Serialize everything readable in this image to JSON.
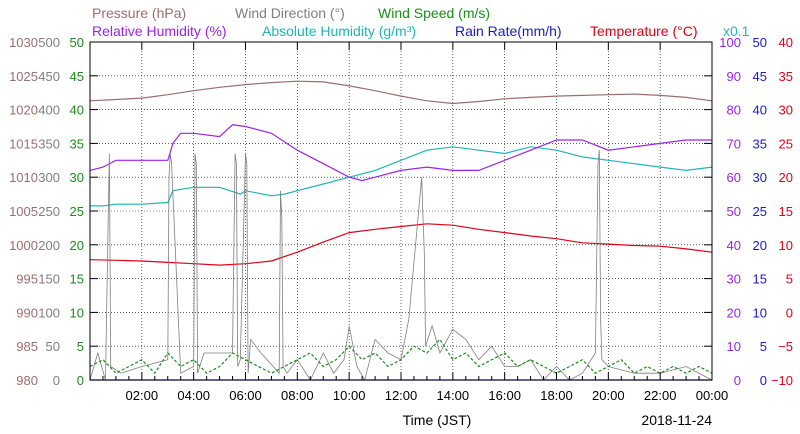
{
  "chart_data": {
    "type": "line",
    "date": "2018-11-24",
    "xlabel": "Time (JST)",
    "legend": {
      "pressure": "Pressure (hPa)",
      "wind_direction": "Wind Direction (°)",
      "wind_speed": "Wind Speed (m/s)",
      "relative_humidity": "Relative Humidity (%)",
      "absolute_humidity": "Absolute Humidity (g/m³)",
      "rain_rate": "Rain Rate(mm/h)",
      "temperature": "Temperature (°C)",
      "rain_multiplier": "x0.1"
    },
    "x_range_hours": [
      0,
      24
    ],
    "x_ticks": [
      "02:00",
      "04:00",
      "06:00",
      "08:00",
      "10:00",
      "12:00",
      "14:00",
      "16:00",
      "18:00",
      "20:00",
      "22:00",
      "00:00"
    ],
    "grid": true,
    "axes": {
      "pressure": {
        "side": "left",
        "color": "#9b6e6e",
        "range": [
          980,
          1030
        ],
        "ticks": [
          "1030",
          "1025",
          "1020",
          "1015",
          "1010",
          "1005",
          "1000",
          "995",
          "990",
          "985",
          "980"
        ]
      },
      "wind_direction": {
        "side": "left",
        "color": "#7f7f7f",
        "range": [
          0,
          500
        ],
        "ticks": [
          "500",
          "450",
          "400",
          "350",
          "300",
          "250",
          "200",
          "150",
          "100",
          "50",
          "0"
        ]
      },
      "wind_speed": {
        "side": "left",
        "color": "#1c8c1c",
        "range": [
          0,
          50
        ],
        "ticks": [
          "50",
          "45",
          "40",
          "35",
          "30",
          "25",
          "20",
          "15",
          "10",
          "5",
          "0"
        ]
      },
      "relative_humidity": {
        "side": "right",
        "color": "#9a24e6",
        "range": [
          0,
          100
        ],
        "ticks": [
          "100",
          "90",
          "80",
          "70",
          "60",
          "50",
          "40",
          "30",
          "20",
          "10",
          "0"
        ]
      },
      "rain_rate": {
        "side": "right",
        "color": "#1a1acc",
        "range": [
          0,
          50
        ],
        "ticks": [
          "50",
          "45",
          "40",
          "35",
          "30",
          "25",
          "20",
          "15",
          "10",
          "5",
          "0"
        ]
      },
      "temperature": {
        "side": "right",
        "color": "#e0001a",
        "range": [
          -10,
          40
        ],
        "ticks": [
          "40",
          "35",
          "30",
          "25",
          "20",
          "15",
          "10",
          "5",
          "0",
          "−5",
          "−10"
        ]
      }
    },
    "series": [
      {
        "name": "Pressure (hPa)",
        "axis": "pressure",
        "color": "#9b6e6e",
        "x": [
          0,
          1,
          2,
          3,
          4,
          5,
          6,
          7,
          8,
          9,
          10,
          11,
          12,
          13,
          14,
          15,
          16,
          17,
          18,
          19,
          20,
          21,
          22,
          23,
          24
        ],
        "y": [
          1021.3,
          1021.5,
          1021.7,
          1022.2,
          1022.8,
          1023.3,
          1023.7,
          1024.0,
          1024.2,
          1024.1,
          1023.5,
          1022.8,
          1022.0,
          1021.3,
          1020.9,
          1021.2,
          1021.6,
          1021.8,
          1022.0,
          1022.1,
          1022.2,
          1022.3,
          1022.1,
          1021.8,
          1021.3
        ]
      },
      {
        "name": "Absolute Humidity (g/m³)",
        "axis": "relative_humidity",
        "color": "#1fb5b5",
        "x": [
          0,
          0.5,
          1,
          2,
          3,
          3.2,
          4,
          5,
          5.8,
          6,
          7,
          7.5,
          8,
          9,
          10,
          11,
          12,
          13,
          14,
          15,
          16,
          17,
          18,
          19,
          20,
          21,
          22,
          23,
          24
        ],
        "y": [
          51.5,
          51.5,
          52,
          52,
          52.5,
          56,
          57,
          57,
          55,
          56,
          54.5,
          55,
          56,
          58,
          60,
          62,
          65,
          68,
          69,
          68,
          67,
          69,
          68,
          66,
          65,
          64,
          63,
          62,
          63
        ]
      },
      {
        "name": "Relative Humidity (%)",
        "axis": "relative_humidity",
        "color": "#9a24e6",
        "x": [
          0,
          0.5,
          1,
          2,
          3,
          3.2,
          3.5,
          4,
          5,
          5.5,
          6,
          7,
          8,
          9,
          10,
          10.5,
          11,
          12,
          13,
          14,
          15,
          16,
          17,
          18,
          19,
          20,
          21,
          22,
          23,
          24
        ],
        "y": [
          62,
          63,
          65,
          65,
          65,
          70,
          73,
          73,
          72,
          75.5,
          75,
          73,
          68,
          64,
          60,
          59,
          60,
          62,
          63,
          62,
          62,
          65,
          68,
          71,
          71,
          68,
          69,
          70,
          71,
          71
        ]
      },
      {
        "name": "Temperature (°C)",
        "axis": "temperature",
        "color": "#e0001a",
        "x": [
          0,
          1,
          2,
          3,
          4,
          5,
          6,
          7,
          8,
          9,
          10,
          11,
          12,
          13,
          14,
          15,
          16,
          17,
          18,
          19,
          20,
          21,
          22,
          23,
          24
        ],
        "y": [
          7.8,
          7.7,
          7.6,
          7.4,
          7.2,
          7.0,
          7.2,
          7.6,
          8.9,
          10.4,
          11.8,
          12.3,
          12.7,
          13.1,
          12.9,
          12.3,
          11.8,
          11.3,
          10.9,
          10.3,
          10.1,
          9.9,
          9.8,
          9.4,
          8.9
        ]
      },
      {
        "name": "Wind Direction (°)",
        "axis": "wind_direction",
        "color": "#7f7f7f",
        "x": [
          0,
          0.3,
          0.6,
          0.7,
          0.75,
          0.8,
          1.2,
          2,
          3,
          3.05,
          3.1,
          3.15,
          3.5,
          4.0,
          4.05,
          4.1,
          4.15,
          4.4,
          5.5,
          5.6,
          5.65,
          5.7,
          5.8,
          6,
          6.05,
          6.1,
          6.2,
          6.6,
          7.3,
          7.35,
          7.4,
          7.45,
          7.6,
          8,
          8.5,
          9,
          9.4,
          9.8,
          10,
          10.3,
          10.6,
          11,
          11.5,
          12,
          12.3,
          12.8,
          12.85,
          12.9,
          12.95,
          13.2,
          13.5,
          14,
          14.5,
          15,
          15.5,
          16,
          16.5,
          17,
          17.5,
          18,
          18.5,
          19,
          19.5,
          19.6,
          19.65,
          19.7,
          19.75,
          20,
          21,
          22,
          23,
          24
        ],
        "y": [
          0,
          40,
          0,
          230,
          335,
          20,
          10,
          20,
          30,
          300,
          335,
          320,
          10,
          20,
          335,
          320,
          10,
          40,
          40,
          335,
          320,
          20,
          30,
          335,
          320,
          10,
          60,
          40,
          10,
          280,
          240,
          20,
          10,
          30,
          0,
          40,
          10,
          30,
          80,
          20,
          0,
          60,
          40,
          30,
          90,
          300,
          240,
          190,
          50,
          80,
          40,
          75,
          60,
          30,
          50,
          20,
          20,
          30,
          0,
          20,
          0,
          10,
          40,
          320,
          340,
          90,
          30,
          20,
          10,
          10,
          20,
          0
        ]
      },
      {
        "name": "Wind Speed (m/s)",
        "axis": "wind_speed",
        "color": "#1c8c1c",
        "x": [
          0,
          0.5,
          1,
          1.5,
          2,
          2.5,
          3,
          3.5,
          4,
          4.5,
          5,
          5.5,
          6,
          6.5,
          7,
          7.5,
          8,
          8.5,
          9,
          9.5,
          10,
          10.5,
          11,
          11.5,
          12,
          12.5,
          13,
          13.5,
          14,
          14.5,
          15,
          15.5,
          16,
          16.5,
          17,
          17.5,
          18,
          18.5,
          19,
          19.5,
          20,
          20.5,
          21,
          21.5,
          22,
          22.5,
          23,
          23.5,
          24
        ],
        "y": [
          2,
          3,
          1,
          2,
          3,
          1,
          4,
          2,
          3,
          1,
          2,
          4,
          3,
          2,
          1,
          2,
          3,
          4,
          2,
          3,
          5,
          3,
          4,
          2,
          3,
          5,
          4,
          6,
          3,
          4,
          2,
          3,
          4,
          2,
          3,
          2,
          1,
          2,
          3,
          1,
          2,
          3,
          1,
          2,
          1,
          2,
          1,
          2,
          1
        ]
      },
      {
        "name": "Rain Rate(mm/h)",
        "axis": "rain_rate",
        "color": "#1a1acc",
        "x": [
          0,
          24
        ],
        "y": [
          0,
          0
        ]
      }
    ]
  }
}
